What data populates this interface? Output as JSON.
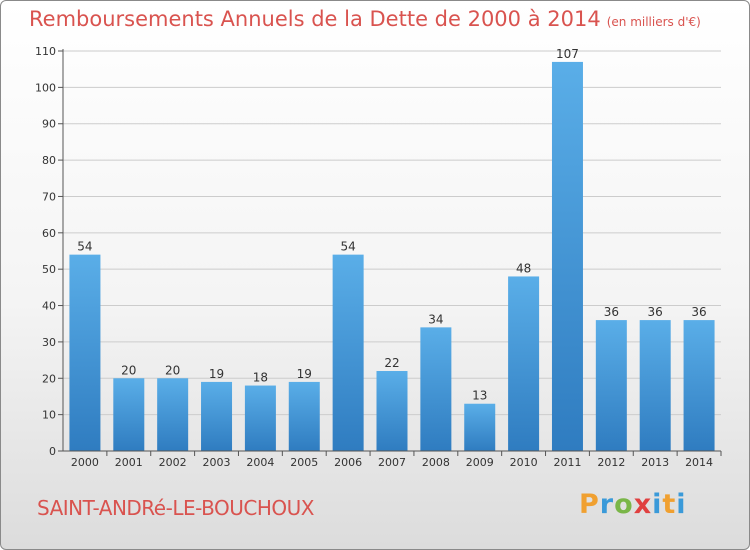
{
  "header": {
    "title": "Remboursements Annuels de la Dette de 2000 à 2014",
    "unit_note": "(en milliers d'€)"
  },
  "footer": {
    "commune": "SAINT-ANDRé-LE-BOUCHOUX",
    "logo_text": "Proxiti"
  },
  "colors": {
    "title": "#d9534f",
    "bar_light": "#5aaee8",
    "bar_dark": "#2f7cc0",
    "gridline": "#cccccc"
  },
  "chart_data": {
    "type": "bar",
    "title": "Remboursements Annuels de la Dette de 2000 à 2014",
    "xlabel": "",
    "ylabel": "",
    "ylim": [
      0,
      110
    ],
    "y_ticks": [
      0,
      10,
      20,
      30,
      40,
      50,
      60,
      70,
      80,
      90,
      100,
      110
    ],
    "grid": true,
    "categories": [
      "2000",
      "2001",
      "2002",
      "2003",
      "2004",
      "2005",
      "2006",
      "2007",
      "2008",
      "2009",
      "2010",
      "2011",
      "2012",
      "2013",
      "2014"
    ],
    "values": [
      54,
      20,
      20,
      19,
      18,
      19,
      54,
      22,
      34,
      13,
      48,
      107,
      36,
      36,
      36
    ]
  }
}
